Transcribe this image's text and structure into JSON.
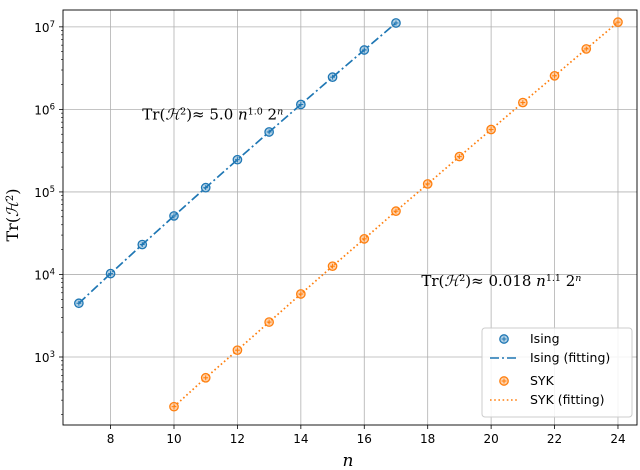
{
  "chart_data": {
    "type": "scatter",
    "x_scale": "linear",
    "y_scale": "log",
    "xlim": [
      6.5,
      24.6
    ],
    "ylim": [
      150,
      16000000
    ],
    "grid": true,
    "legend_position": "bottom-right",
    "xlabel": "n",
    "ylabel": "Tr(ℋ²)",
    "x_ticks": [
      8,
      10,
      12,
      14,
      16,
      18,
      20,
      22,
      24
    ],
    "y_ticks": [
      1000,
      10000,
      100000,
      1000000,
      10000000
    ],
    "y_tick_labels": [
      {
        "base": "10",
        "exp": "3"
      },
      {
        "base": "10",
        "exp": "4"
      },
      {
        "base": "10",
        "exp": "5"
      },
      {
        "base": "10",
        "exp": "6"
      },
      {
        "base": "10",
        "exp": "7"
      }
    ],
    "series": [
      {
        "name": "Ising",
        "kind": "points",
        "color": "#1f77b4",
        "x": [
          7,
          8,
          9,
          10,
          11,
          12,
          13,
          14,
          15,
          16,
          17
        ],
        "y": [
          4480,
          10240,
          23040,
          51200,
          112640,
          245760,
          532480,
          1146880,
          2457600,
          5242880,
          11141120
        ]
      },
      {
        "name": "Ising (fitting)",
        "kind": "line",
        "style": "dashdot",
        "color": "#1f77b4",
        "x": [
          7,
          8,
          9,
          10,
          11,
          12,
          13,
          14,
          15,
          16,
          17
        ],
        "y": [
          4480,
          10240,
          23040,
          51200,
          112640,
          245760,
          532480,
          1146880,
          2457600,
          5242880,
          11141120
        ]
      },
      {
        "name": "SYK",
        "kind": "points",
        "color": "#ff7f0e",
        "x": [
          10,
          11,
          12,
          13,
          14,
          15,
          16,
          17,
          18,
          19,
          20,
          21,
          22,
          23,
          24
        ],
        "y": [
          250,
          560,
          1210,
          2650,
          5800,
          12600,
          27000,
          58500,
          125000,
          268000,
          570000,
          1210000,
          2550000,
          5400000,
          11400000
        ]
      },
      {
        "name": "SYK (fitting)",
        "kind": "line",
        "style": "dotted",
        "color": "#ff7f0e",
        "x": [
          10,
          11,
          12,
          13,
          14,
          15,
          16,
          17,
          18,
          19,
          20,
          21,
          22,
          23,
          24
        ],
        "y": [
          250,
          560,
          1210,
          2650,
          5800,
          12600,
          27000,
          58500,
          125000,
          268000,
          570000,
          1210000,
          2550000,
          5400000,
          11400000
        ]
      }
    ],
    "annotations": [
      {
        "id": "ising",
        "text_parts": [
          "Tr(",
          "ℋ",
          "2",
          ")≈ 5.0 ",
          "n",
          "1.0",
          " 2",
          "n"
        ],
        "x": 9.0,
        "y": 750000
      },
      {
        "id": "syk",
        "text_parts": [
          "Tr(",
          "ℋ",
          "2",
          ")≈ 0.018 ",
          "n",
          "1.1",
          " 2",
          "n"
        ],
        "x": 17.8,
        "y": 7200
      }
    ]
  }
}
